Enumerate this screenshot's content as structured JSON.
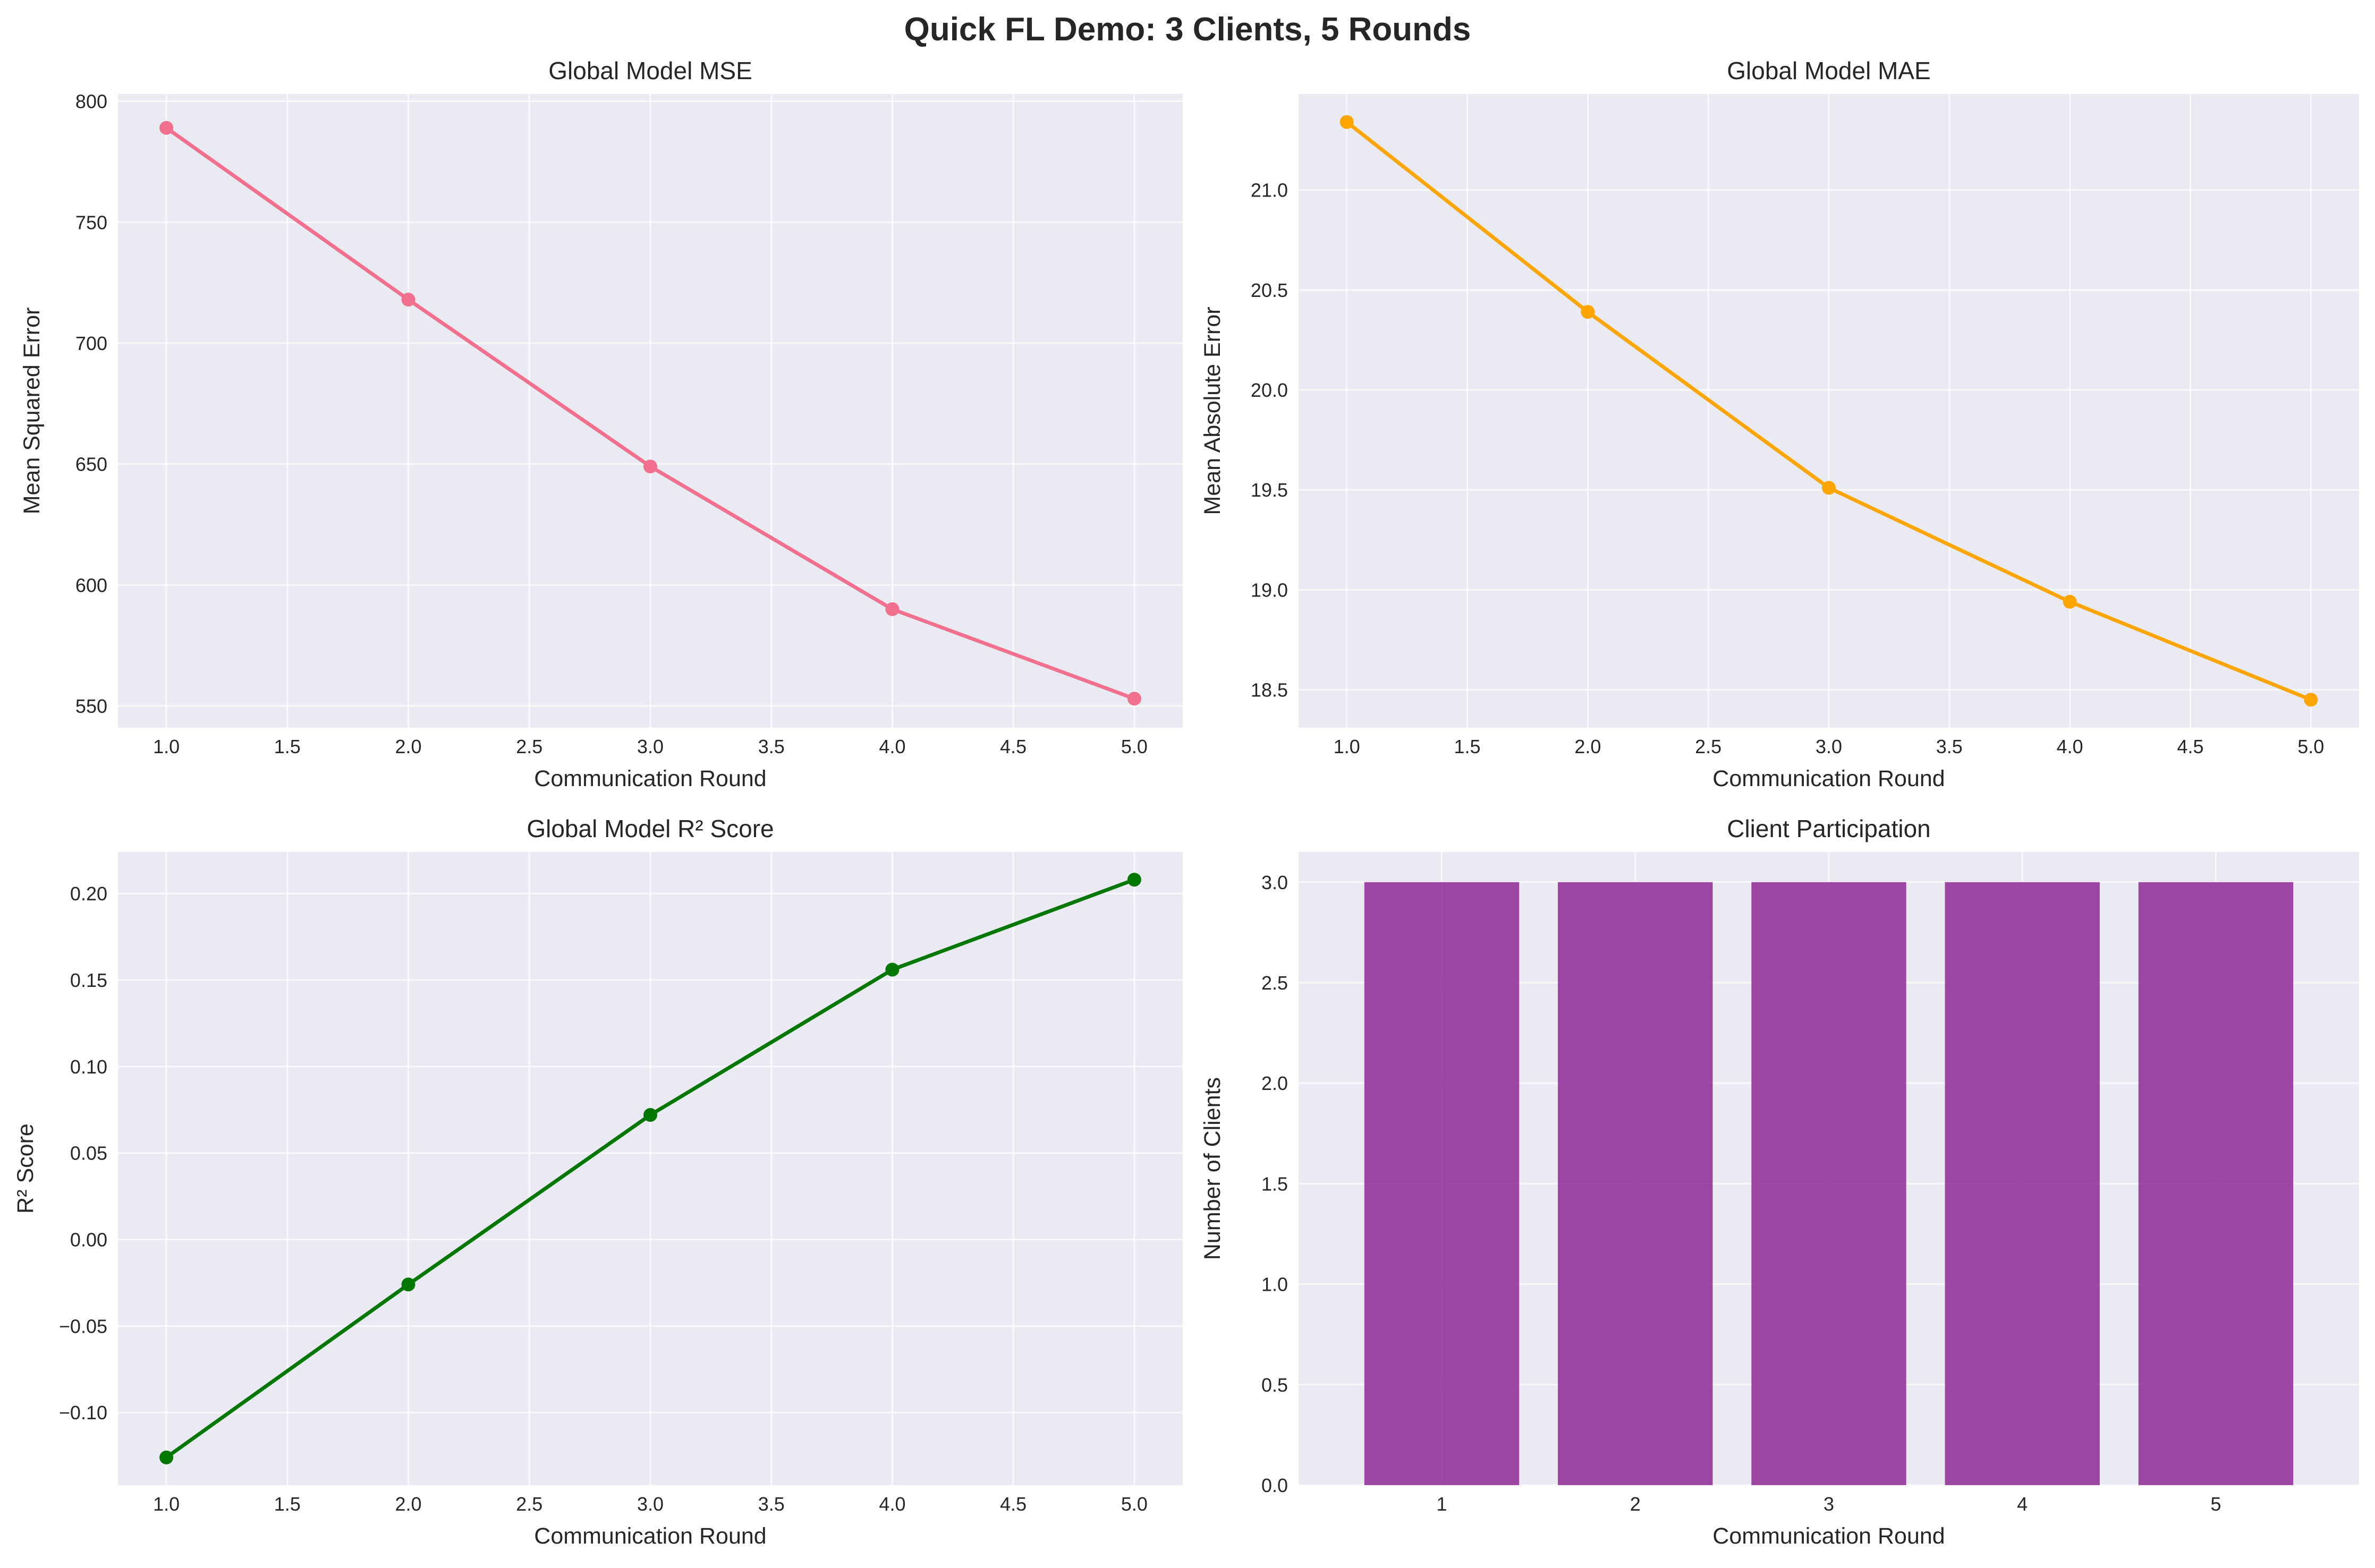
{
  "figure": {
    "title": "Quick FL Demo: 3 Clients, 5 Rounds"
  },
  "chart_data": [
    {
      "id": "mse",
      "type": "line",
      "title": "Global Model MSE",
      "xlabel": "Communication Round",
      "ylabel": "Mean Squared Error",
      "x": [
        1,
        2,
        3,
        4,
        5
      ],
      "series": [
        {
          "values": [
            789,
            718,
            649,
            590,
            553
          ],
          "color": "#f0708e"
        }
      ],
      "xlim": [
        0.8,
        5.2
      ],
      "ylim": [
        541,
        803
      ],
      "xticks": [
        1.0,
        1.5,
        2.0,
        2.5,
        3.0,
        3.5,
        4.0,
        4.5,
        5.0
      ],
      "xtick_labels": [
        "1.0",
        "1.5",
        "2.0",
        "2.5",
        "3.0",
        "3.5",
        "4.0",
        "4.5",
        "5.0"
      ],
      "yticks": [
        550,
        600,
        650,
        700,
        750,
        800
      ],
      "ytick_labels": [
        "550",
        "600",
        "650",
        "700",
        "750",
        "800"
      ],
      "grid": true
    },
    {
      "id": "mae",
      "type": "line",
      "title": "Global Model MAE",
      "xlabel": "Communication Round",
      "ylabel": "Mean Absolute Error",
      "x": [
        1,
        2,
        3,
        4,
        5
      ],
      "series": [
        {
          "values": [
            21.34,
            20.39,
            19.51,
            18.94,
            18.45
          ],
          "color": "#ffa500"
        }
      ],
      "xlim": [
        0.8,
        5.2
      ],
      "ylim": [
        18.31,
        21.48
      ],
      "xticks": [
        1.0,
        1.5,
        2.0,
        2.5,
        3.0,
        3.5,
        4.0,
        4.5,
        5.0
      ],
      "xtick_labels": [
        "1.0",
        "1.5",
        "2.0",
        "2.5",
        "3.0",
        "3.5",
        "4.0",
        "4.5",
        "5.0"
      ],
      "yticks": [
        18.5,
        19.0,
        19.5,
        20.0,
        20.5,
        21.0
      ],
      "ytick_labels": [
        "18.5",
        "19.0",
        "19.5",
        "20.0",
        "20.5",
        "21.0"
      ],
      "grid": true
    },
    {
      "id": "r2",
      "type": "line",
      "title": "Global Model R² Score",
      "xlabel": "Communication Round",
      "ylabel": "R² Score",
      "x": [
        1,
        2,
        3,
        4,
        5
      ],
      "series": [
        {
          "values": [
            -0.126,
            -0.026,
            0.072,
            0.156,
            0.208
          ],
          "color": "#007700"
        }
      ],
      "xlim": [
        0.8,
        5.2
      ],
      "ylim": [
        -0.142,
        0.224
      ],
      "xticks": [
        1.0,
        1.5,
        2.0,
        2.5,
        3.0,
        3.5,
        4.0,
        4.5,
        5.0
      ],
      "xtick_labels": [
        "1.0",
        "1.5",
        "2.0",
        "2.5",
        "3.0",
        "3.5",
        "4.0",
        "4.5",
        "5.0"
      ],
      "yticks": [
        -0.1,
        -0.05,
        0.0,
        0.05,
        0.1,
        0.15,
        0.2
      ],
      "ytick_labels": [
        "−0.10",
        "−0.05",
        "0.00",
        "0.05",
        "0.10",
        "0.15",
        "0.20"
      ],
      "grid": true
    },
    {
      "id": "participation",
      "type": "bar",
      "title": "Client Participation",
      "xlabel": "Communication Round",
      "ylabel": "Number of Clients",
      "categories": [
        "1",
        "2",
        "3",
        "4",
        "5"
      ],
      "x": [
        1,
        2,
        3,
        4,
        5
      ],
      "values": [
        3,
        3,
        3,
        3,
        3
      ],
      "color": "#93339a",
      "xlim": [
        0.26,
        5.74
      ],
      "ylim": [
        0,
        3.15
      ],
      "xticks": [
        1,
        2,
        3,
        4,
        5
      ],
      "xtick_labels": [
        "1",
        "2",
        "3",
        "4",
        "5"
      ],
      "yticks": [
        0.0,
        0.5,
        1.0,
        1.5,
        2.0,
        2.5,
        3.0
      ],
      "ytick_labels": [
        "0.0",
        "0.5",
        "1.0",
        "1.5",
        "2.0",
        "2.5",
        "3.0"
      ],
      "grid": true
    }
  ]
}
